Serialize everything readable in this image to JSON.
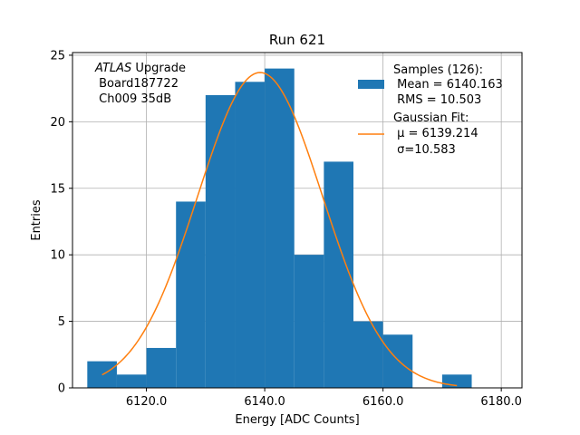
{
  "chart_data": {
    "type": "bar",
    "title": "Run 621",
    "xlabel": "Energy [ADC Counts]",
    "ylabel": "Entries",
    "xlim": [
      6107.5,
      6183.5
    ],
    "ylim": [
      0,
      25.2
    ],
    "grid": true,
    "x_ticks": [
      6120.0,
      6140.0,
      6160.0,
      6180.0
    ],
    "x_tick_labels": [
      "6120.0",
      "6140.0",
      "6160.0",
      "6180.0"
    ],
    "y_ticks": [
      0,
      5,
      10,
      15,
      20,
      25
    ],
    "y_tick_labels": [
      "0",
      "5",
      "10",
      "15",
      "20",
      "25"
    ],
    "bins": [
      {
        "x0": 6110,
        "x1": 6115,
        "value": 2
      },
      {
        "x0": 6115,
        "x1": 6120,
        "value": 1
      },
      {
        "x0": 6120,
        "x1": 6125,
        "value": 3
      },
      {
        "x0": 6125,
        "x1": 6130,
        "value": 14
      },
      {
        "x0": 6130,
        "x1": 6135,
        "value": 22
      },
      {
        "x0": 6135,
        "x1": 6140,
        "value": 23
      },
      {
        "x0": 6140,
        "x1": 6145,
        "value": 24
      },
      {
        "x0": 6145,
        "x1": 6150,
        "value": 10
      },
      {
        "x0": 6150,
        "x1": 6155,
        "value": 17
      },
      {
        "x0": 6155,
        "x1": 6160,
        "value": 5
      },
      {
        "x0": 6160,
        "x1": 6165,
        "value": 4
      },
      {
        "x0": 6165,
        "x1": 6170,
        "value": 0
      },
      {
        "x0": 6170,
        "x1": 6175,
        "value": 1
      }
    ],
    "fit": {
      "mu": 6139.214,
      "sigma": 10.583,
      "amplitude": 23.7,
      "x_range": [
        6112.5,
        6172.5
      ]
    },
    "colors": {
      "bars": "#1f77b4",
      "fit": "#ff7f0e",
      "grid": "#b0b0b0"
    },
    "legend_placement": "top-right",
    "legend": {
      "samples_line1": "Samples (126):",
      "samples_line2": " Mean = 6140.163",
      "samples_line3": " RMS = 10.503",
      "fit_line1": "Gaussian Fit:",
      "fit_line2": " μ = 6139.214",
      "fit_line3": " σ=10.583"
    },
    "annotation": {
      "line1_italic": "ATLAS",
      "line1_rest": " Upgrade",
      "line2": " Board187722",
      "line3": " Ch009 35dB"
    }
  }
}
